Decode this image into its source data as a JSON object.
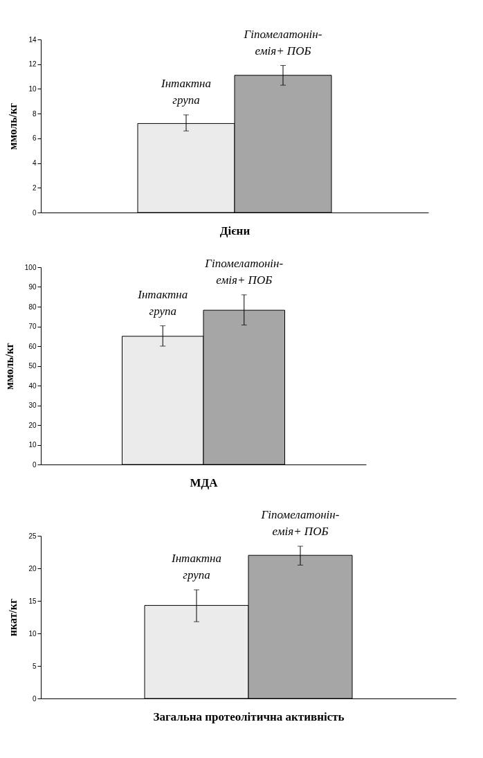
{
  "chart_data": [
    {
      "type": "bar",
      "categories": [
        "Інтактна\nгрупа",
        "Гіпомелатонін-\nемія+ ПОБ"
      ],
      "values": [
        7.2,
        11.1
      ],
      "errors": [
        [
          6.6,
          7.9
        ],
        [
          10.3,
          11.9
        ]
      ],
      "colors": [
        "#ebebeb",
        "#a6a6a6"
      ],
      "ylabel": "ммоль/кг",
      "xlabel": "Дієни",
      "ylim": [
        0,
        14
      ],
      "yticks": [
        0,
        2,
        4,
        6,
        8,
        10,
        12,
        14
      ],
      "grid": false
    },
    {
      "type": "bar",
      "categories": [
        "Інтактна\nгрупа",
        "Гіпомелатонін-\nемія+ ПОБ"
      ],
      "values": [
        65,
        78.2
      ],
      "errors": [
        [
          60,
          70.3
        ],
        [
          70.7,
          86
        ]
      ],
      "colors": [
        "#ebebeb",
        "#a6a6a6"
      ],
      "ylabel": "ммоль/кг",
      "xlabel": "МДА",
      "ylim": [
        0,
        100
      ],
      "yticks": [
        0,
        10,
        20,
        30,
        40,
        50,
        60,
        70,
        80,
        90,
        100
      ],
      "grid": false
    },
    {
      "type": "bar",
      "categories": [
        "Інтактна\nгрупа",
        "Гіпомелатонін-\nемія+ ПОБ"
      ],
      "values": [
        14.3,
        22
      ],
      "errors": [
        [
          11.8,
          16.7
        ],
        [
          20.5,
          23.4
        ]
      ],
      "colors": [
        "#ebebeb",
        "#a6a6a6"
      ],
      "ylabel": "нкат/кг",
      "xlabel": "Загальна протеолітична активність",
      "ylim": [
        0,
        25
      ],
      "yticks": [
        0,
        5,
        10,
        15,
        20,
        25
      ],
      "grid": false
    }
  ]
}
